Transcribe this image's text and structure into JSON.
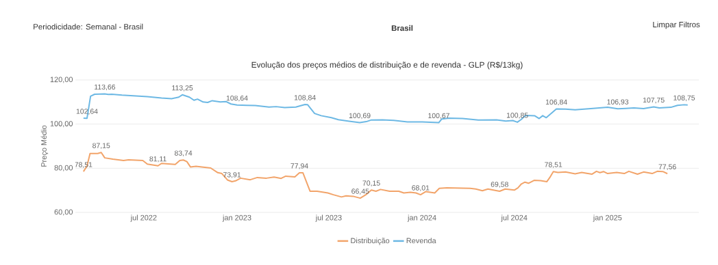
{
  "chart_data": {
    "type": "line",
    "title": "Evolução dos preços médios de distribuição e de revenda - GLP (R$/13kg)",
    "ylabel": "Preço Médio",
    "annotations": [
      "Periodicidade: Semanal - Brasil",
      "Brasil",
      "Limpar Filtros"
    ],
    "xlim": [
      "2022-02-16",
      "2025-06-30"
    ],
    "xticks": [
      {
        "value": "2022-07-01",
        "label": "jul 2022"
      },
      {
        "value": "2023-01-01",
        "label": "jan 2023"
      },
      {
        "value": "2023-07-01",
        "label": "jul 2023"
      },
      {
        "value": "2024-01-01",
        "label": "jan 2024"
      },
      {
        "value": "2024-07-01",
        "label": "jul 2024"
      },
      {
        "value": "2025-01-01",
        "label": "jan 2025"
      }
    ],
    "ylim": [
      60,
      120
    ],
    "yticks": [
      {
        "value": 60,
        "label": "60,00"
      },
      {
        "value": 80,
        "label": "80,00"
      },
      {
        "value": 100,
        "label": "100,00"
      },
      {
        "value": 120,
        "label": "120,00"
      }
    ],
    "grid": "y",
    "legend": "bottom",
    "series": [
      {
        "name": "Distribuição",
        "color": "#f2a46a",
        "x": [
          "2022-03-04",
          "2022-03-11",
          "2022-03-17",
          "2022-04-01",
          "2022-04-08",
          "2022-04-15",
          "2022-05-01",
          "2022-05-22",
          "2022-06-01",
          "2022-06-29",
          "2022-07-08",
          "2022-07-29",
          "2022-08-05",
          "2022-09-01",
          "2022-09-10",
          "2022-09-17",
          "2022-09-24",
          "2022-10-01",
          "2022-10-12",
          "2022-11-10",
          "2022-11-24",
          "2022-12-02",
          "2022-12-13",
          "2022-12-22",
          "2022-12-29",
          "2023-01-08",
          "2023-01-27",
          "2023-02-10",
          "2023-02-28",
          "2023-03-15",
          "2023-03-29",
          "2023-04-07",
          "2023-04-25",
          "2023-05-04",
          "2023-05-11",
          "2023-05-25",
          "2023-06-08",
          "2023-06-29",
          "2023-07-10",
          "2023-07-26",
          "2023-08-04",
          "2023-08-18",
          "2023-09-01",
          "2023-09-12",
          "2023-09-23",
          "2023-10-02",
          "2023-10-11",
          "2023-10-29",
          "2023-11-16",
          "2023-11-26",
          "2023-12-09",
          "2023-12-20",
          "2023-12-29",
          "2024-01-08",
          "2024-01-26",
          "2024-02-04",
          "2024-02-19",
          "2024-04-05",
          "2024-04-16",
          "2024-04-29",
          "2024-05-10",
          "2024-06-02",
          "2024-06-13",
          "2024-07-01",
          "2024-07-08",
          "2024-07-15",
          "2024-07-22",
          "2024-07-29",
          "2024-08-09",
          "2024-08-22",
          "2024-09-03",
          "2024-09-09",
          "2024-09-16",
          "2024-09-25",
          "2024-10-10",
          "2024-10-29",
          "2024-11-11",
          "2024-12-01",
          "2024-12-10",
          "2024-12-17",
          "2024-12-24",
          "2025-01-01",
          "2025-01-19",
          "2025-02-03",
          "2025-02-12",
          "2025-03-01",
          "2025-03-13",
          "2025-03-30",
          "2025-04-09",
          "2025-04-20",
          "2025-04-29"
        ],
        "values": [
          78.51,
          81.0,
          86.7,
          86.7,
          87.15,
          84.7,
          84.1,
          83.5,
          83.8,
          83.5,
          81.9,
          81.11,
          82.2,
          81.7,
          83.5,
          83.74,
          83.0,
          80.6,
          80.9,
          80.1,
          78.0,
          77.6,
          74.7,
          73.91,
          74.3,
          75.5,
          74.8,
          75.8,
          75.5,
          76.0,
          75.4,
          76.4,
          76.1,
          77.94,
          77.9,
          69.6,
          69.6,
          68.8,
          68.0,
          67.0,
          67.5,
          67.3,
          66.45,
          68.0,
          70.15,
          69.6,
          70.4,
          69.6,
          69.6,
          68.8,
          69.1,
          68.8,
          68.01,
          69.4,
          68.8,
          70.9,
          71.1,
          70.9,
          70.6,
          69.8,
          70.6,
          69.58,
          70.6,
          70.1,
          71.1,
          72.9,
          73.7,
          73.2,
          74.5,
          74.4,
          73.9,
          75.8,
          78.51,
          78.1,
          78.3,
          77.5,
          78.1,
          77.3,
          78.6,
          78.0,
          78.5,
          77.6,
          78.1,
          77.6,
          78.6,
          77.3,
          78.3,
          77.6,
          78.6,
          78.5,
          77.56
        ],
        "value_labels": [
          "78,51",
          null,
          null,
          null,
          "87,15",
          null,
          null,
          null,
          null,
          null,
          null,
          "81,11",
          null,
          null,
          null,
          "83,74",
          null,
          null,
          null,
          null,
          null,
          null,
          null,
          "73,91",
          null,
          null,
          null,
          null,
          null,
          null,
          null,
          null,
          null,
          "77,94",
          null,
          null,
          null,
          null,
          null,
          null,
          null,
          null,
          "66,45",
          null,
          "70,15",
          null,
          null,
          null,
          null,
          null,
          null,
          null,
          "68,01",
          null,
          null,
          null,
          null,
          null,
          null,
          null,
          null,
          "69,58",
          null,
          null,
          null,
          null,
          null,
          null,
          null,
          null,
          null,
          null,
          "78,51",
          null,
          null,
          null,
          null,
          null,
          null,
          null,
          null,
          null,
          null,
          null,
          null,
          null,
          null,
          null,
          null,
          null,
          "77,56"
        ]
      },
      {
        "name": "Revenda",
        "color": "#6cb8e4",
        "x": [
          "2022-03-04",
          "2022-03-11",
          "2022-03-18",
          "2022-03-26",
          "2022-04-15",
          "2022-04-22",
          "2022-04-29",
          "2022-05-19",
          "2022-06-16",
          "2022-07-08",
          "2022-08-05",
          "2022-08-25",
          "2022-09-08",
          "2022-09-15",
          "2022-09-29",
          "2022-10-08",
          "2022-10-15",
          "2022-10-26",
          "2022-11-04",
          "2022-11-13",
          "2022-11-29",
          "2022-12-10",
          "2022-12-20",
          "2023-01-01",
          "2023-01-20",
          "2023-02-06",
          "2023-03-05",
          "2023-03-19",
          "2023-04-05",
          "2023-04-27",
          "2023-05-15",
          "2023-05-20",
          "2023-06-03",
          "2023-06-16",
          "2023-07-06",
          "2023-07-20",
          "2023-08-10",
          "2023-08-31",
          "2023-09-13",
          "2023-09-22",
          "2023-10-15",
          "2023-11-06",
          "2023-12-03",
          "2024-01-01",
          "2024-02-03",
          "2024-02-09",
          "2024-02-23",
          "2024-03-21",
          "2024-04-21",
          "2024-05-27",
          "2024-06-14",
          "2024-06-28",
          "2024-07-07",
          "2024-07-14",
          "2024-07-23",
          "2024-08-10",
          "2024-08-19",
          "2024-08-26",
          "2024-09-02",
          "2024-09-22",
          "2024-10-10",
          "2024-10-29",
          "2024-11-29",
          "2025-01-01",
          "2025-01-21",
          "2025-02-06",
          "2025-02-22",
          "2025-03-13",
          "2025-04-02",
          "2025-04-13",
          "2025-05-06",
          "2025-05-19",
          "2025-06-01",
          "2025-06-08"
        ],
        "values": [
          102.7,
          102.64,
          112.6,
          113.5,
          113.66,
          113.4,
          113.5,
          113.1,
          112.7,
          112.4,
          111.8,
          111.5,
          112.2,
          113.25,
          112.2,
          110.8,
          111.3,
          110.0,
          109.8,
          110.6,
          110.0,
          110.2,
          109.1,
          108.64,
          108.5,
          108.4,
          107.7,
          107.9,
          107.5,
          107.7,
          108.84,
          108.8,
          104.8,
          103.8,
          102.9,
          102.0,
          101.3,
          100.69,
          101.1,
          101.8,
          101.9,
          101.7,
          101.0,
          101.0,
          100.67,
          102.3,
          102.7,
          102.5,
          101.8,
          101.9,
          101.4,
          101.6,
          100.85,
          102.0,
          103.9,
          103.8,
          102.5,
          103.8,
          102.9,
          106.84,
          106.8,
          106.5,
          107.0,
          107.6,
          106.93,
          107.1,
          107.3,
          107.0,
          107.75,
          107.3,
          107.6,
          108.5,
          108.75,
          108.6
        ],
        "value_labels": [
          null,
          "102,64",
          null,
          null,
          "113,66",
          null,
          null,
          null,
          null,
          null,
          null,
          null,
          null,
          "113,25",
          null,
          null,
          null,
          null,
          null,
          null,
          null,
          null,
          null,
          "108,64",
          null,
          null,
          null,
          null,
          null,
          null,
          "108,84",
          null,
          null,
          null,
          null,
          null,
          null,
          "100,69",
          null,
          null,
          null,
          null,
          null,
          null,
          "100,67",
          null,
          null,
          null,
          null,
          null,
          null,
          null,
          "100,85",
          null,
          null,
          null,
          null,
          null,
          null,
          "106,84",
          null,
          null,
          null,
          null,
          "106,93",
          null,
          null,
          null,
          "107,75",
          null,
          null,
          null,
          "108,75",
          null
        ]
      }
    ]
  }
}
